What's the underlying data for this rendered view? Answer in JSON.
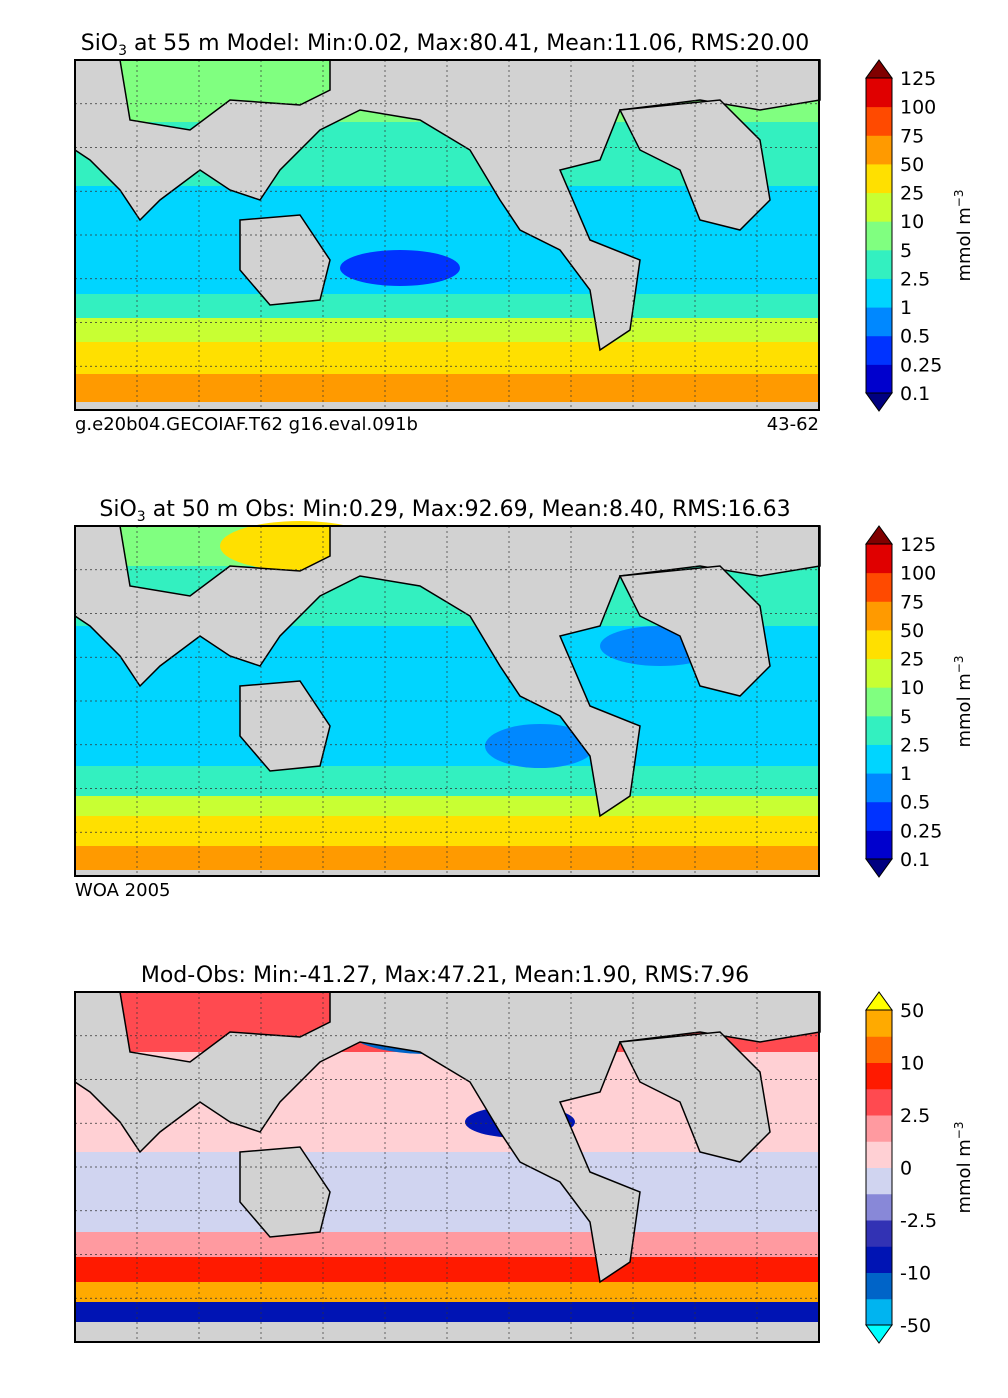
{
  "chart_data": [
    {
      "type": "heatmap",
      "title_prefix": "SiO",
      "title_subscript": "3",
      "title_suffix": " at 55 m Model: Min:0.02, Max:80.41, Mean:11.06, RMS:20.00",
      "stats": {
        "min": 0.02,
        "max": 80.41,
        "mean": 11.06,
        "rms": 20.0
      },
      "footer_left": "g.e20b04.GECOIAF.T62 g16.eval.091b",
      "footer_right": "43-62",
      "colorbar": {
        "label": "mmol m",
        "label_sup": "−3",
        "ticks": [
          "0.1",
          "0.25",
          "0.5",
          "1",
          "2.5",
          "5",
          "10",
          "25",
          "50",
          "75",
          "100",
          "125"
        ],
        "colors": [
          "#000080",
          "#0000cd",
          "#0033ff",
          "#0088ff",
          "#00d5ff",
          "#33f0c0",
          "#80ff80",
          "#c8ff33",
          "#ffe000",
          "#ff9a00",
          "#ff4a00",
          "#e00000",
          "#800000"
        ]
      }
    },
    {
      "type": "heatmap",
      "title_prefix": "SiO",
      "title_subscript": "3",
      "title_suffix": " at 50 m Obs: Min:0.29, Max:92.69, Mean:8.40, RMS:16.63",
      "stats": {
        "min": 0.29,
        "max": 92.69,
        "mean": 8.4,
        "rms": 16.63
      },
      "footer_left": "WOA 2005",
      "footer_right": "",
      "colorbar": {
        "label": "mmol m",
        "label_sup": "−3",
        "ticks": [
          "0.1",
          "0.25",
          "0.5",
          "1",
          "2.5",
          "5",
          "10",
          "25",
          "50",
          "75",
          "100",
          "125"
        ],
        "colors": [
          "#000080",
          "#0000cd",
          "#0033ff",
          "#0088ff",
          "#00d5ff",
          "#33f0c0",
          "#80ff80",
          "#c8ff33",
          "#ffe000",
          "#ff9a00",
          "#ff4a00",
          "#e00000",
          "#800000"
        ]
      }
    },
    {
      "type": "heatmap",
      "title_prefix": "Mod-Obs: Min:-41.27, Max:47.21, Mean:1.90, RMS:7.96",
      "title_subscript": "",
      "title_suffix": "",
      "stats": {
        "min": -41.27,
        "max": 47.21,
        "mean": 1.9,
        "rms": 7.96
      },
      "footer_left": "",
      "footer_right": "",
      "colorbar": {
        "label": "mmol m",
        "label_sup": "−3",
        "ticks": [
          "-50",
          "",
          "-10",
          "",
          "-2.5",
          "",
          "0",
          "",
          "2.5",
          "",
          "10",
          "",
          "50"
        ],
        "colors": [
          "#00ffff",
          "#00b4f0",
          "#0064c8",
          "#0014b4",
          "#3232b4",
          "#8888d8",
          "#d0d4f0",
          "#ffd0d4",
          "#ff9aa0",
          "#ff4a50",
          "#ff1a00",
          "#ff6a00",
          "#ffaa00",
          "#ffff00"
        ]
      }
    }
  ]
}
